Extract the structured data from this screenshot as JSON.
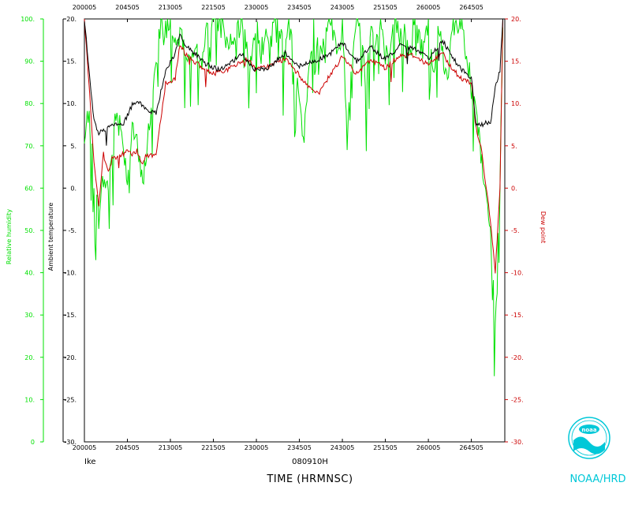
{
  "chart_data": {
    "type": "line",
    "colors": {
      "rh": "#00e000",
      "temp": "#000000",
      "dew": "#cc0000",
      "frame": "#000000",
      "logo": "#00c8d8"
    },
    "x_ticks": [
      "200005",
      "204505",
      "213005",
      "221505",
      "230005",
      "234505",
      "243005",
      "251505",
      "260005",
      "264505"
    ],
    "x_values": [
      200005,
      204505,
      213005,
      221505,
      230005,
      234505,
      243005,
      251505,
      260005,
      264505
    ],
    "xlim": [
      200005,
      272005
    ],
    "temp_axis": {
      "ylim": [
        -30,
        20
      ],
      "ticks": [
        "20.",
        "15.",
        "10.",
        "5.",
        "0.",
        "-5.",
        "-10.",
        "-15.",
        "-20.",
        "-25.",
        "-30."
      ],
      "label": "Ambient temperature"
    },
    "rh_axis": {
      "ylim": [
        0,
        100
      ],
      "ticks": [
        "100.",
        "90.",
        "80.",
        "70.",
        "60.",
        "50.",
        "40.",
        "30.",
        "20.",
        "10.",
        "0"
      ],
      "label": "Relative humidity"
    },
    "dew_axis": {
      "ylim": [
        -30,
        20
      ],
      "ticks": [
        "20.",
        "15.",
        "10.",
        "5.",
        "0.",
        "-5.",
        "-10.",
        "-15.",
        "-20.",
        "-25.",
        "-30."
      ],
      "label": "Dew point"
    },
    "series": [
      {
        "key": "temp",
        "x": [
          200005,
          200500,
          201005,
          201505,
          202005,
          203005,
          204005,
          205005,
          205505,
          210505,
          211505,
          212505,
          213005,
          213505,
          214005,
          214505,
          215505,
          220505,
          221505,
          222005,
          223005,
          224505,
          230005,
          231505,
          233005,
          234505,
          240005,
          241505,
          243005,
          244505,
          250005,
          251505,
          253005,
          254505,
          260005,
          261505,
          262505,
          263505,
          264505,
          265005,
          265505,
          270005,
          270505,
          271005,
          271505,
          271800
        ],
        "y": [
          20,
          14,
          8,
          6.5,
          6.8,
          7.5,
          7.4,
          9.8,
          10.5,
          9.2,
          8.8,
          14,
          14.8,
          16,
          18,
          17,
          16,
          14.8,
          14.3,
          14,
          14.5,
          15.8,
          13.8,
          14.4,
          16,
          14.4,
          15,
          15.7,
          17.2,
          15,
          16.7,
          15.2,
          16.8,
          16.5,
          15.3,
          17.5,
          15.5,
          14,
          13,
          7.5,
          7.4,
          7.8,
          7.5,
          12,
          14,
          20
        ]
      },
      {
        "key": "dew",
        "x": [
          200005,
          200500,
          201005,
          201505,
          202005,
          202505,
          203005,
          203505,
          204005,
          204505,
          205005,
          205505,
          210005,
          210505,
          211505,
          212505,
          213005,
          213505,
          214005,
          214505,
          215505,
          220505,
          221505,
          222005,
          223005,
          224005,
          225005,
          230005,
          231505,
          233005,
          234505,
          235505,
          240505,
          241505,
          243005,
          244505,
          250005,
          251505,
          253005,
          254505,
          260005,
          261505,
          262505,
          263505,
          264505,
          265005,
          265505,
          270005,
          270505,
          271005,
          271505,
          271800
        ],
        "y": [
          20,
          12,
          3,
          -2,
          4,
          2,
          3.8,
          3.5,
          4,
          4.5,
          3.8,
          4.5,
          3,
          3.8,
          4,
          12.5,
          12.5,
          13,
          17,
          16,
          15,
          14,
          13.5,
          13.8,
          14,
          14.6,
          15.3,
          14,
          14.5,
          15.3,
          13.3,
          12,
          11,
          13,
          15.5,
          13.5,
          15.2,
          14.2,
          15.7,
          15.7,
          14.6,
          16,
          14,
          13,
          12.5,
          7,
          5,
          0.5,
          -4,
          -10,
          0,
          20
        ]
      },
      {
        "key": "rh",
        "x": [
          200005,
          200505,
          201005,
          201505,
          202005,
          202505,
          203005,
          203505,
          204005,
          204505,
          205005,
          205505,
          210005,
          210505,
          211005,
          211505,
          212005,
          212505,
          213005,
          213505,
          214005,
          214505,
          215505,
          220505,
          221505,
          222505,
          223505,
          224505,
          225505,
          230005,
          230505,
          231005,
          231505,
          232005,
          232505,
          233005,
          233505,
          234005,
          234505,
          235005,
          235505,
          240005,
          240505,
          241005,
          241505,
          242005,
          242505,
          243005,
          243505,
          244005,
          244505,
          245005,
          245505,
          250005,
          250505,
          251005,
          251505,
          252005,
          252505,
          253005,
          253505,
          254005,
          254505,
          255005,
          255505,
          260005,
          260505,
          261005,
          261505,
          262005,
          262505,
          263005,
          263505,
          264005,
          264505,
          265005,
          265505,
          270005,
          270505,
          271005,
          271505,
          271800
        ],
        "y": [
          70,
          80,
          60,
          55,
          62,
          60,
          73,
          78,
          72,
          62,
          75,
          70,
          62,
          68,
          80,
          90,
          100,
          98,
          100,
          96,
          99,
          92,
          90,
          95,
          100,
          100,
          92,
          100,
          88,
          100,
          92,
          100,
          94,
          100,
          96,
          92,
          100,
          88,
          80,
          72,
          88,
          100,
          92,
          95,
          100,
          98,
          90,
          100,
          72,
          92,
          100,
          95,
          85,
          100,
          94,
          100,
          92,
          90,
          100,
          96,
          100,
          90,
          100,
          95,
          93,
          100,
          88,
          100,
          92,
          85,
          100,
          96,
          100,
          90,
          85,
          80,
          68,
          60,
          50,
          30,
          60,
          98
        ]
      }
    ],
    "title_xlabel": "TIME (HRMNSC)",
    "storm": "Ike",
    "flight_id": "080910H",
    "agency": "NOAA/HRD",
    "logo_text": "noaa",
    "grid": false
  }
}
